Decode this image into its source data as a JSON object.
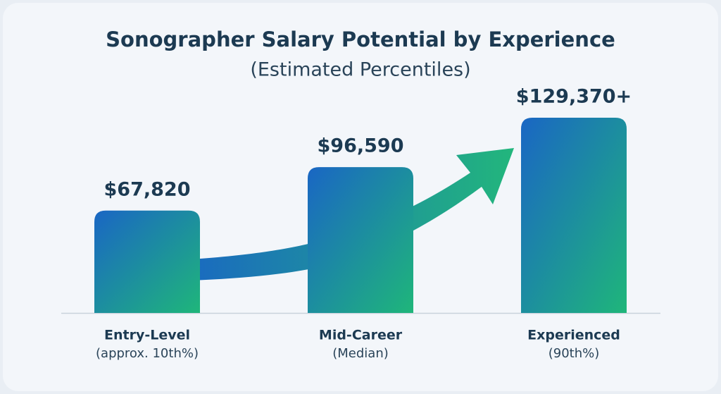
{
  "chart_data": {
    "type": "bar",
    "title": "Sonographer Salary Potential by Experience",
    "subtitle": "(Estimated Percentiles)",
    "categories": [
      "Entry-Level",
      "Mid-Career",
      "Experienced"
    ],
    "category_notes": [
      "(approx. 10th%)",
      "(Median)",
      "(90th%)"
    ],
    "values": [
      67820,
      96590,
      129370
    ],
    "value_labels": [
      "$67,820",
      "$96,590",
      "$129,370+"
    ]
  }
}
